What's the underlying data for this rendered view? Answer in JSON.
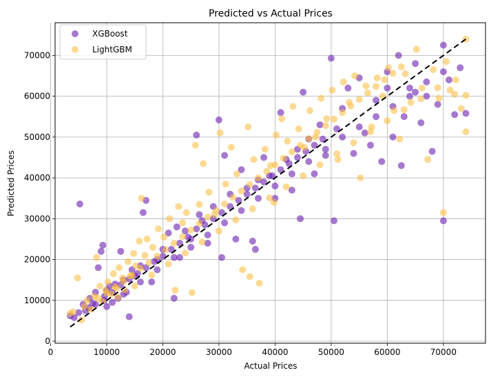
{
  "chart_data": {
    "type": "scatter",
    "title": "Predicted vs Actual Prices",
    "xlabel": "Actual Prices",
    "ylabel": "Predicted Prices",
    "xlim": [
      800,
      77500
    ],
    "ylim": [
      -500,
      78000
    ],
    "xticks": [
      0,
      10000,
      20000,
      30000,
      40000,
      50000,
      60000,
      70000
    ],
    "yticks": [
      0,
      10000,
      20000,
      30000,
      40000,
      50000,
      60000,
      70000
    ],
    "xtick_labels": [
      "0",
      "10000",
      "20000",
      "30000",
      "40000",
      "50000",
      "60000",
      "70000"
    ],
    "ytick_labels": [
      "0",
      "10000",
      "20000",
      "30000",
      "40000",
      "50000",
      "60000",
      "70000"
    ],
    "grid": true,
    "legend_position": "top-left",
    "reference_line": {
      "x": [
        3500,
        74000
      ],
      "y": [
        3500,
        74000
      ],
      "style": "dashed",
      "color": "#000000"
    },
    "series": [
      {
        "name": "XGBoost",
        "color": "#6a1fb0",
        "opacity": 0.6,
        "points": [
          [
            3500,
            6200
          ],
          [
            4200,
            5800
          ],
          [
            5000,
            7000
          ],
          [
            5200,
            33600
          ],
          [
            5800,
            9000
          ],
          [
            6200,
            7500
          ],
          [
            6800,
            8200
          ],
          [
            7000,
            10500
          ],
          [
            7500,
            9200
          ],
          [
            8000,
            12000
          ],
          [
            8500,
            18000
          ],
          [
            9000,
            22000
          ],
          [
            9300,
            23500
          ],
          [
            9600,
            11000
          ],
          [
            10000,
            12500
          ],
          [
            10500,
            13500
          ],
          [
            11000,
            9500
          ],
          [
            11500,
            14000
          ],
          [
            12000,
            10500
          ],
          [
            12500,
            22000
          ],
          [
            13000,
            15000
          ],
          [
            13500,
            12000
          ],
          [
            14000,
            6000
          ],
          [
            14500,
            17500
          ],
          [
            15000,
            16000
          ],
          [
            16000,
            18500
          ],
          [
            16500,
            31500
          ],
          [
            17000,
            34500
          ],
          [
            18000,
            14500
          ],
          [
            19000,
            20000
          ],
          [
            20000,
            22500
          ],
          [
            21000,
            26500
          ],
          [
            22000,
            10500
          ],
          [
            22500,
            28000
          ],
          [
            23000,
            20500
          ],
          [
            24000,
            27000
          ],
          [
            25000,
            25000
          ],
          [
            26000,
            50500
          ],
          [
            26500,
            31000
          ],
          [
            27000,
            29500
          ],
          [
            28000,
            24000
          ],
          [
            29000,
            33000
          ],
          [
            30000,
            54200
          ],
          [
            30500,
            20500
          ],
          [
            31000,
            45500
          ],
          [
            32000,
            36000
          ],
          [
            33000,
            25000
          ],
          [
            34000,
            42000
          ],
          [
            35000,
            37500
          ],
          [
            36000,
            24500
          ],
          [
            36500,
            22500
          ],
          [
            37000,
            39500
          ],
          [
            38000,
            45000
          ],
          [
            39000,
            40500
          ],
          [
            40000,
            35000
          ],
          [
            41000,
            56000
          ],
          [
            42000,
            44500
          ],
          [
            43000,
            37000
          ],
          [
            44000,
            47000
          ],
          [
            44500,
            30000
          ],
          [
            45000,
            61000
          ],
          [
            46000,
            49500
          ],
          [
            47000,
            41000
          ],
          [
            48000,
            53000
          ],
          [
            49000,
            45500
          ],
          [
            50000,
            69300
          ],
          [
            50500,
            29500
          ],
          [
            51000,
            52000
          ],
          [
            52000,
            57000
          ],
          [
            53000,
            62000
          ],
          [
            54000,
            46000
          ],
          [
            55000,
            64500
          ],
          [
            56000,
            51000
          ],
          [
            57000,
            48000
          ],
          [
            58000,
            59000
          ],
          [
            59000,
            44000
          ],
          [
            60000,
            66000
          ],
          [
            61000,
            50000
          ],
          [
            62000,
            70000
          ],
          [
            62500,
            43000
          ],
          [
            63000,
            55000
          ],
          [
            64000,
            62000
          ],
          [
            65000,
            68000
          ],
          [
            66000,
            53500
          ],
          [
            67000,
            60000
          ],
          [
            68000,
            46500
          ],
          [
            69000,
            58000
          ],
          [
            70000,
            29500
          ],
          [
            70000,
            72500
          ],
          [
            71000,
            64000
          ],
          [
            72000,
            55500
          ],
          [
            73000,
            67000
          ],
          [
            74000,
            55800
          ],
          [
            8000,
            9000
          ],
          [
            9500,
            10000
          ],
          [
            11000,
            12000
          ],
          [
            12500,
            13800
          ],
          [
            14000,
            15200
          ],
          [
            15500,
            16600
          ],
          [
            17000,
            18000
          ],
          [
            18500,
            19500
          ],
          [
            20000,
            20800
          ],
          [
            21500,
            22500
          ],
          [
            23000,
            24000
          ],
          [
            24500,
            25500
          ],
          [
            26000,
            27500
          ],
          [
            27500,
            28500
          ],
          [
            29000,
            30000
          ],
          [
            30500,
            31500
          ],
          [
            32000,
            33000
          ],
          [
            33500,
            34500
          ],
          [
            35000,
            36000
          ],
          [
            36500,
            37500
          ],
          [
            38000,
            39000
          ],
          [
            39500,
            40500
          ],
          [
            41000,
            42000
          ],
          [
            42500,
            43500
          ],
          [
            44000,
            45000
          ],
          [
            45500,
            46500
          ],
          [
            47000,
            48000
          ],
          [
            48500,
            49500
          ],
          [
            10000,
            8500
          ],
          [
            13000,
            11500
          ],
          [
            16000,
            14500
          ],
          [
            19000,
            17500
          ],
          [
            22000,
            20500
          ],
          [
            25000,
            23000
          ],
          [
            28000,
            26000
          ],
          [
            31000,
            29000
          ],
          [
            34000,
            32000
          ],
          [
            37000,
            35000
          ],
          [
            40000,
            38000
          ],
          [
            43000,
            41000
          ],
          [
            46000,
            44000
          ],
          [
            49000,
            47000
          ],
          [
            52000,
            50000
          ],
          [
            55000,
            52500
          ],
          [
            58000,
            55000
          ],
          [
            61000,
            57500
          ],
          [
            64000,
            60000
          ],
          [
            67000,
            63500
          ],
          [
            70000,
            66000
          ],
          [
            60000,
            62000
          ],
          [
            65000,
            61000
          ]
        ]
      },
      {
        "name": "LightGBM",
        "color": "#fbbc3b",
        "opacity": 0.55,
        "points": [
          [
            3500,
            6800
          ],
          [
            4000,
            7200
          ],
          [
            4800,
            15500
          ],
          [
            5500,
            5200
          ],
          [
            6000,
            8500
          ],
          [
            6500,
            10000
          ],
          [
            7200,
            7800
          ],
          [
            7800,
            11000
          ],
          [
            8200,
            20500
          ],
          [
            8800,
            13500
          ],
          [
            9200,
            9800
          ],
          [
            9800,
            12500
          ],
          [
            10200,
            14500
          ],
          [
            10800,
            11500
          ],
          [
            11200,
            16500
          ],
          [
            11800,
            13000
          ],
          [
            12200,
            18000
          ],
          [
            12800,
            15500
          ],
          [
            13200,
            12500
          ],
          [
            13800,
            19500
          ],
          [
            14200,
            16000
          ],
          [
            14800,
            21500
          ],
          [
            15200,
            18500
          ],
          [
            15800,
            24500
          ],
          [
            16200,
            35000
          ],
          [
            16800,
            21000
          ],
          [
            17200,
            25000
          ],
          [
            18200,
            23000
          ],
          [
            19200,
            27500
          ],
          [
            20200,
            25500
          ],
          [
            21200,
            30000
          ],
          [
            22200,
            12500
          ],
          [
            22800,
            33000
          ],
          [
            23500,
            29000
          ],
          [
            24200,
            31500
          ],
          [
            25200,
            11900
          ],
          [
            25800,
            48000
          ],
          [
            26500,
            33500
          ],
          [
            27200,
            43500
          ],
          [
            28200,
            36500
          ],
          [
            29200,
            31000
          ],
          [
            30200,
            51000
          ],
          [
            31200,
            38500
          ],
          [
            32200,
            47500
          ],
          [
            33200,
            41000
          ],
          [
            34200,
            17500
          ],
          [
            35200,
            52500
          ],
          [
            35500,
            15800
          ],
          [
            36200,
            44500
          ],
          [
            37200,
            14200
          ],
          [
            38200,
            47000
          ],
          [
            39200,
            43000
          ],
          [
            39800,
            34000
          ],
          [
            40200,
            50500
          ],
          [
            41200,
            54500
          ],
          [
            42200,
            49000
          ],
          [
            43200,
            57500
          ],
          [
            44200,
            52000
          ],
          [
            45200,
            47500
          ],
          [
            46200,
            56500
          ],
          [
            47200,
            50000
          ],
          [
            48200,
            59500
          ],
          [
            49200,
            54500
          ],
          [
            50200,
            61500
          ],
          [
            51200,
            44500
          ],
          [
            52200,
            63500
          ],
          [
            53200,
            58500
          ],
          [
            54200,
            65000
          ],
          [
            55200,
            40000
          ],
          [
            56200,
            62500
          ],
          [
            57200,
            52500
          ],
          [
            58200,
            64500
          ],
          [
            59200,
            60000
          ],
          [
            60200,
            67000
          ],
          [
            61200,
            56500
          ],
          [
            62200,
            49500
          ],
          [
            63200,
            65500
          ],
          [
            64200,
            58500
          ],
          [
            65200,
            71500
          ],
          [
            66200,
            62000
          ],
          [
            67200,
            44500
          ],
          [
            68200,
            66500
          ],
          [
            69200,
            59500
          ],
          [
            70000,
            31500
          ],
          [
            70500,
            68500
          ],
          [
            71200,
            61500
          ],
          [
            72200,
            64000
          ],
          [
            73200,
            57000
          ],
          [
            74000,
            74000
          ],
          [
            74000,
            51300
          ],
          [
            8500,
            10500
          ],
          [
            10000,
            11800
          ],
          [
            11500,
            13200
          ],
          [
            13000,
            14600
          ],
          [
            14500,
            16200
          ],
          [
            16000,
            17800
          ],
          [
            17500,
            19200
          ],
          [
            19000,
            20800
          ],
          [
            20500,
            22400
          ],
          [
            22000,
            24000
          ],
          [
            23500,
            25600
          ],
          [
            25000,
            27200
          ],
          [
            26500,
            28800
          ],
          [
            28000,
            30400
          ],
          [
            29500,
            32000
          ],
          [
            31000,
            33600
          ],
          [
            32500,
            35200
          ],
          [
            34000,
            36800
          ],
          [
            35500,
            38400
          ],
          [
            37000,
            40000
          ],
          [
            38500,
            41600
          ],
          [
            40000,
            43200
          ],
          [
            41500,
            44800
          ],
          [
            43000,
            46400
          ],
          [
            44500,
            48000
          ],
          [
            46000,
            49600
          ],
          [
            47500,
            51200
          ],
          [
            49000,
            52800
          ],
          [
            50500,
            54400
          ],
          [
            52000,
            56000
          ],
          [
            53500,
            57600
          ],
          [
            55000,
            59200
          ],
          [
            56500,
            60800
          ],
          [
            58000,
            62400
          ],
          [
            59500,
            64000
          ],
          [
            61000,
            65600
          ],
          [
            62500,
            67200
          ],
          [
            12000,
            10800
          ],
          [
            15000,
            13500
          ],
          [
            18000,
            16200
          ],
          [
            21000,
            18900
          ],
          [
            24000,
            21600
          ],
          [
            27000,
            24300
          ],
          [
            30000,
            27000
          ],
          [
            33000,
            29700
          ],
          [
            36000,
            32400
          ],
          [
            39000,
            35100
          ],
          [
            42000,
            37800
          ],
          [
            45000,
            40500
          ],
          [
            48000,
            43200
          ],
          [
            51000,
            45900
          ],
          [
            54000,
            48600
          ],
          [
            57000,
            51300
          ],
          [
            60000,
            54000
          ],
          [
            63000,
            56700
          ],
          [
            66000,
            59400
          ],
          [
            69000,
            62100
          ],
          [
            72000,
            60500
          ],
          [
            74000,
            60200
          ]
        ]
      }
    ]
  }
}
